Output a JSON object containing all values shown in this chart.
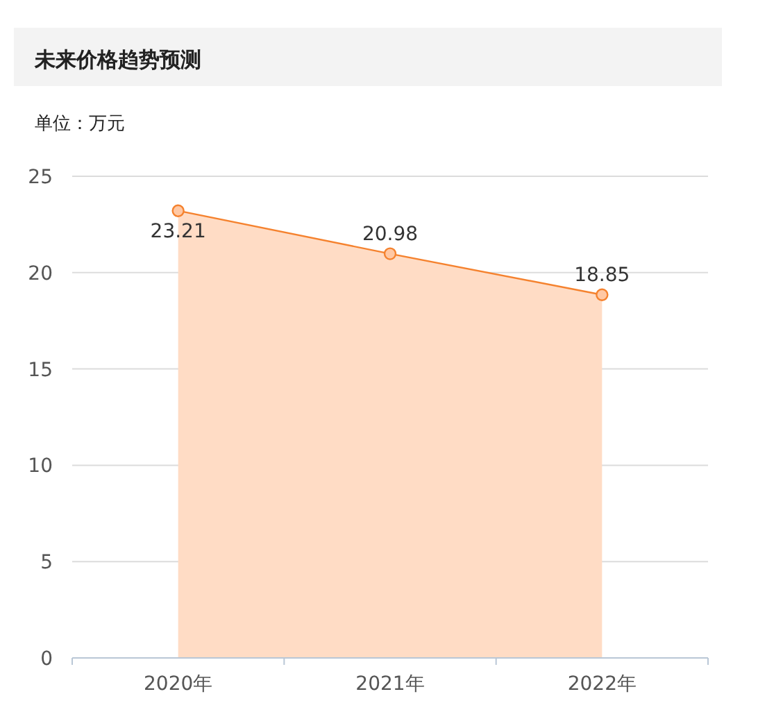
{
  "chart_data": {
    "type": "area",
    "title": "未来价格趋势预测",
    "subtitle": "单位：万元",
    "categories": [
      "2020年",
      "2021年",
      "2022年"
    ],
    "values": [
      23.21,
      20.98,
      18.85
    ],
    "color": "#f5822e",
    "ylim": [
      0,
      25
    ],
    "yticks": [
      0,
      5,
      10,
      15,
      20,
      25
    ],
    "grid": "y",
    "marker": "circle",
    "data_labels": true
  }
}
